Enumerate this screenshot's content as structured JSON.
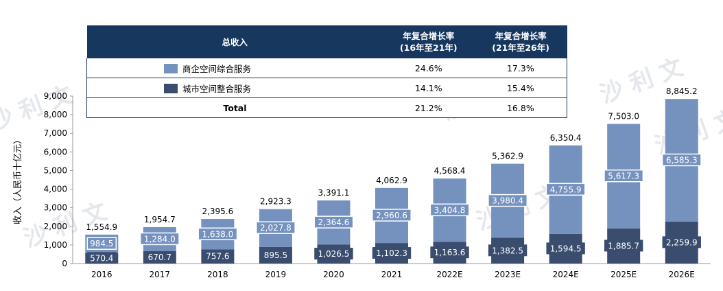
{
  "table": {
    "header_name": "总收入",
    "header_c1": [
      "年复合增长率",
      "(16年至21年)"
    ],
    "header_c2": [
      "年复合增长率",
      "(21年至26年)"
    ],
    "rows": [
      {
        "label": "商企空间综合服务",
        "c1": "24.6%",
        "c2": "17.3%"
      },
      {
        "label": "城市空间整合服务",
        "c1": "14.1%",
        "c2": "15.4%"
      },
      {
        "label": "Total",
        "c1": "21.2%",
        "c2": "16.8%"
      }
    ]
  },
  "watermark": "沙 利 文",
  "colors": {
    "top_series": "#7592bf",
    "bottom_series": "#3a4d6f",
    "header_bg": "#17375e"
  },
  "chart_data": {
    "type": "bar",
    "stacked": true,
    "ylabel": "收入（人民币十亿元）",
    "ylim": [
      0,
      9000
    ],
    "ytick_step": 1000,
    "ytick_labels": [
      "0",
      "1,000",
      "2,000",
      "3,000",
      "4,000",
      "5,000",
      "6,000",
      "7,000",
      "8,000",
      "9,000"
    ],
    "categories": [
      "2016",
      "2017",
      "2018",
      "2019",
      "2020",
      "2021",
      "2022E",
      "2023E",
      "2024E",
      "2025E",
      "2026E"
    ],
    "series": [
      {
        "name": "城市空间整合服务",
        "values": [
          570.4,
          670.7,
          757.6,
          895.5,
          1026.5,
          1102.3,
          1163.6,
          1382.5,
          1594.5,
          1885.7,
          2259.9
        ],
        "labels": [
          "570.4",
          "670.7",
          "757.6",
          "895.5",
          "1,026.5",
          "1,102.3",
          "1,163.6",
          "1,382.5",
          "1,594.5",
          "1,885.7",
          "2,259.9"
        ]
      },
      {
        "name": "商企空间综合服务",
        "values": [
          984.5,
          1284.0,
          1638.0,
          2027.8,
          2364.6,
          2960.6,
          3404.8,
          3980.4,
          4755.9,
          5617.3,
          6585.3
        ],
        "labels": [
          "984.5",
          "1,284.0",
          "1,638.0",
          "2,027.8",
          "2,364.6",
          "2,960.6",
          "3,404.8",
          "3,980.4",
          "4,755.9",
          "5,617.3",
          "6,585.3"
        ]
      }
    ],
    "totals": [
      1554.9,
      1954.7,
      2395.6,
      2923.3,
      3391.1,
      4062.9,
      4568.4,
      5362.9,
      6350.4,
      7503.0,
      8845.2
    ],
    "total_labels": [
      "1,554.9",
      "1,954.7",
      "2,395.6",
      "2,923.3",
      "3,391.1",
      "4,062.9",
      "4,568.4",
      "5,362.9",
      "6,350.4",
      "7,503.0",
      "8,845.2"
    ]
  }
}
